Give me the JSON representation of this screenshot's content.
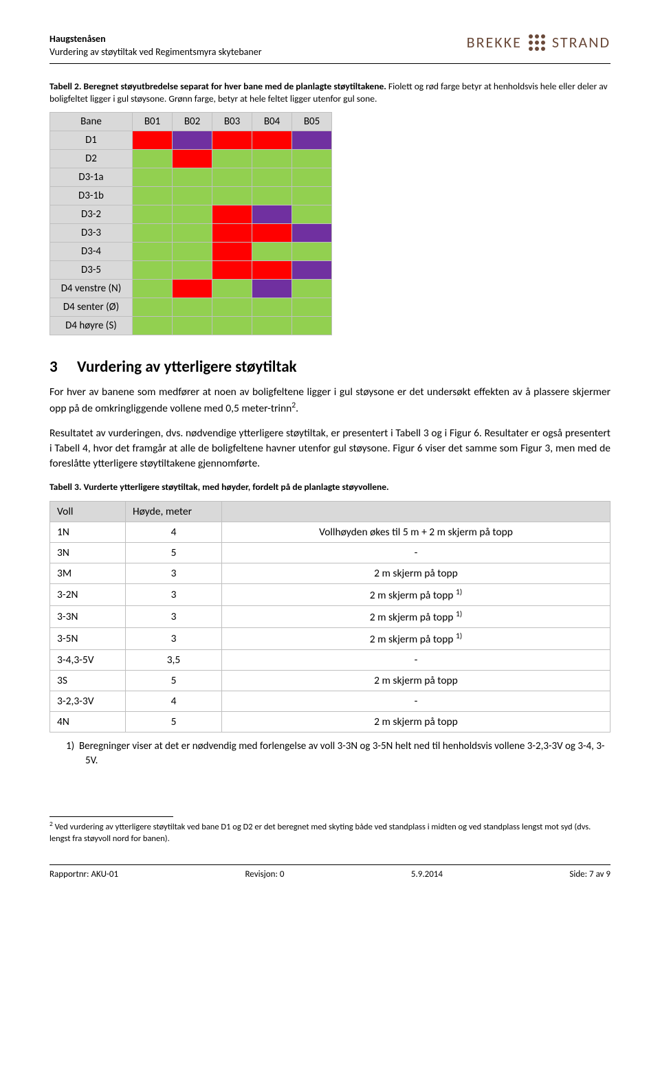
{
  "header": {
    "project": "Haugstenåsen",
    "subtitle": "Vurdering av støytiltak ved Regimentsmyra skytebaner",
    "logo_left": "BREKKE",
    "logo_right": "STRAND",
    "logo_color": "#6b4a3a"
  },
  "table2": {
    "caption_bold": "Tabell 2. Beregnet støyutbredelse separat for hver bane med de planlagte støytiltakene.",
    "caption_rest": " Fiolett og rød farge betyr at henholdsvis hele eller deler av boligfeltet ligger i gul støysone. Grønn farge, betyr at hele feltet ligger utenfor gul sone.",
    "col_label": "Bane",
    "cols": [
      "B01",
      "B02",
      "B03",
      "B04",
      "B05"
    ],
    "rows": [
      "D1",
      "D2",
      "D3-1a",
      "D3-1b",
      "D3-2",
      "D3-3",
      "D3-4",
      "D3-5",
      "D4 venstre (N)",
      "D4 senter (Ø)",
      "D4 høyre (S)"
    ],
    "colors": {
      "r": "#ff0000",
      "p": "#7030a0",
      "g": "#92d050"
    },
    "cells": [
      [
        "r",
        "p",
        "r",
        "r",
        "p"
      ],
      [
        "g",
        "r",
        "g",
        "g",
        "g"
      ],
      [
        "g",
        "g",
        "g",
        "g",
        "g"
      ],
      [
        "g",
        "g",
        "g",
        "g",
        "g"
      ],
      [
        "g",
        "g",
        "r",
        "p",
        "g"
      ],
      [
        "g",
        "g",
        "r",
        "r",
        "p"
      ],
      [
        "g",
        "g",
        "r",
        "g",
        "g"
      ],
      [
        "g",
        "g",
        "r",
        "r",
        "p"
      ],
      [
        "g",
        "r",
        "g",
        "p",
        "g"
      ],
      [
        "g",
        "g",
        "g",
        "g",
        "g"
      ],
      [
        "g",
        "g",
        "g",
        "g",
        "g"
      ]
    ]
  },
  "section3": {
    "num": "3",
    "title": "Vurdering av ytterligere støytiltak",
    "para1": "For hver av banene som medfører at noen av boligfeltene ligger i gul støysone er det undersøkt effekten av å plassere skjermer opp på de omkringliggende vollene med 0,5 meter-trinn",
    "para1_sup": "2",
    "para1_end": ".",
    "para2": "Resultatet av vurderingen, dvs. nødvendige ytterligere støytiltak, er presentert i Tabell 3 og i Figur 6. Resultater er også presentert i Tabell 4, hvor det framgår at alle de boligfeltene havner utenfor gul støysone. Figur 6 viser det samme som Figur 3, men med de foreslåtte ytterligere støytiltakene gjennomførte."
  },
  "table3": {
    "caption": "Tabell 3. Vurderte ytterligere støytiltak, med høyder, fordelt på de planlagte støyvollene.",
    "head": [
      "Voll",
      "Høyde, meter",
      ""
    ],
    "rows": [
      {
        "voll": "1N",
        "h": "4",
        "desc": "Vollhøyden økes til 5 m + 2 m skjerm på topp"
      },
      {
        "voll": "3N",
        "h": "5",
        "desc": "-"
      },
      {
        "voll": "3M",
        "h": "3",
        "desc": "2 m skjerm på topp"
      },
      {
        "voll": "3-2N",
        "h": "3",
        "desc": "2 m skjerm på topp ",
        "sup": "1)"
      },
      {
        "voll": "3-3N",
        "h": "3",
        "desc": "2 m skjerm på topp ",
        "sup": "1)"
      },
      {
        "voll": "3-5N",
        "h": "3",
        "desc": "2 m skjerm på topp ",
        "sup": "1)"
      },
      {
        "voll": "3-4,3-5V",
        "h": "3,5",
        "desc": "-"
      },
      {
        "voll": "3S",
        "h": "5",
        "desc": "2 m skjerm på topp"
      },
      {
        "voll": "3-2,3-3V",
        "h": "4",
        "desc": "-"
      },
      {
        "voll": "4N",
        "h": "5",
        "desc": "2 m skjerm på topp"
      }
    ],
    "footnote_num": "1)",
    "footnote": "Beregninger viser at det er nødvendig med forlengelse av voll 3-3N og 3-5N helt ned til henholdsvis vollene 3-2,3-3V og 3-4, 3-5V."
  },
  "endnote": {
    "sup": "2",
    "text": " Ved vurdering av ytterligere støytiltak ved bane D1 og D2 er det beregnet med skyting både ved standplass i midten og ved standplass lengst mot syd (dvs. lengst fra støyvoll nord for banen)."
  },
  "footer": {
    "left_label": "Rapportnr:",
    "left_val": "AKU-01",
    "mid_label": "Revisjon:",
    "mid_val": "0",
    "date": "5.9.2014",
    "right_label": "Side:",
    "right_val": "7 av 9"
  }
}
